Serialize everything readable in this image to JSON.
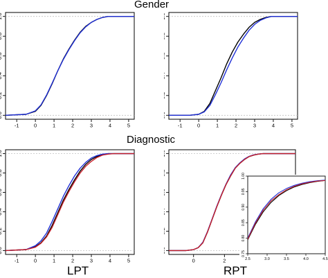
{
  "figure": {
    "section_titles": [
      "Gender",
      "Diagnostic"
    ],
    "bottom_labels": [
      "LPT",
      "RPT"
    ]
  },
  "colors": {
    "black": "#000000",
    "blue": "#1f2fd6",
    "red": "#c8202a",
    "frame": "#000000",
    "ref_line": "#bfbfbf"
  },
  "chart_data": [
    {
      "type": "line",
      "title": "",
      "xlabel": "",
      "ylabel": "",
      "xlim": [
        -1.6,
        5.3
      ],
      "ylim": [
        -0.04,
        1.04
      ],
      "x_ticks": [
        -1,
        0,
        1,
        2,
        3,
        4,
        5
      ],
      "y_ticks": [
        0.0,
        0.2,
        0.4,
        0.6,
        0.8,
        1.0
      ],
      "x_tick_labels": [
        "-1",
        "0",
        "1",
        "2",
        "3",
        "4",
        "5"
      ],
      "y_tick_labels": [
        "0.0",
        "0.2",
        "0.4",
        "0.6",
        "0.8",
        "1.0"
      ],
      "reference_lines_y": [
        0,
        1
      ],
      "grid": false,
      "series": [
        {
          "color": "black",
          "x": [
            -1.6,
            -0.5,
            0.0,
            0.3,
            0.6,
            0.9,
            1.2,
            1.5,
            1.8,
            2.1,
            2.4,
            2.7,
            3.0,
            3.3,
            3.6,
            3.9,
            4.2,
            4.5,
            5.3
          ],
          "y": [
            0.0,
            0.01,
            0.04,
            0.1,
            0.2,
            0.32,
            0.45,
            0.57,
            0.67,
            0.76,
            0.84,
            0.9,
            0.94,
            0.97,
            0.99,
            1.0,
            1.0,
            1.0,
            1.0
          ]
        },
        {
          "color": "blue",
          "x": [
            -1.6,
            -0.5,
            0.0,
            0.3,
            0.6,
            0.9,
            1.2,
            1.5,
            1.8,
            2.1,
            2.4,
            2.7,
            3.0,
            3.3,
            3.6,
            3.9,
            4.2,
            4.5,
            5.3
          ],
          "y": [
            0.0,
            0.01,
            0.045,
            0.105,
            0.205,
            0.325,
            0.45,
            0.565,
            0.665,
            0.755,
            0.835,
            0.895,
            0.94,
            0.97,
            0.99,
            1.0,
            1.0,
            1.0,
            1.0
          ]
        }
      ]
    },
    {
      "type": "line",
      "title": "",
      "xlabel": "",
      "ylabel": "",
      "xlim": [
        -1.6,
        5.3
      ],
      "ylim": [
        -0.04,
        1.04
      ],
      "x_ticks": [
        -1,
        0,
        1,
        2,
        3,
        4,
        5
      ],
      "y_ticks": [
        0.0,
        0.2,
        0.4,
        0.6,
        0.8,
        1.0
      ],
      "x_tick_labels": [
        "-1",
        "0",
        "1",
        "2",
        "3",
        "4",
        "5"
      ],
      "y_tick_labels": [
        "0.0",
        "0.2",
        "0.4",
        "0.6",
        "0.8",
        "1.0"
      ],
      "reference_lines_y": [
        0,
        1
      ],
      "grid": false,
      "series": [
        {
          "color": "black",
          "x": [
            -1.6,
            -0.5,
            0.0,
            0.3,
            0.6,
            0.9,
            1.2,
            1.5,
            1.8,
            2.1,
            2.4,
            2.7,
            3.0,
            3.3,
            3.6,
            3.9,
            4.2,
            4.5,
            5.3
          ],
          "y": [
            0.0,
            0.0,
            0.01,
            0.04,
            0.12,
            0.25,
            0.38,
            0.52,
            0.64,
            0.74,
            0.82,
            0.89,
            0.94,
            0.97,
            0.99,
            1.0,
            1.0,
            1.0,
            1.0
          ]
        },
        {
          "color": "blue",
          "x": [
            -1.6,
            -0.5,
            0.0,
            0.3,
            0.6,
            0.9,
            1.2,
            1.5,
            1.8,
            2.1,
            2.4,
            2.7,
            3.0,
            3.3,
            3.6,
            3.9,
            4.2,
            4.5,
            5.3
          ],
          "y": [
            0.0,
            0.0,
            0.01,
            0.035,
            0.1,
            0.21,
            0.33,
            0.46,
            0.58,
            0.69,
            0.78,
            0.86,
            0.92,
            0.96,
            0.985,
            1.0,
            1.0,
            1.0,
            1.0
          ]
        }
      ]
    },
    {
      "type": "line",
      "title": "",
      "xlabel": "",
      "ylabel": "",
      "xlim": [
        -1.6,
        5.3
      ],
      "ylim": [
        -0.04,
        1.04
      ],
      "x_ticks": [
        -1,
        0,
        1,
        2,
        3,
        4,
        5
      ],
      "y_ticks": [
        0.0,
        0.2,
        0.4,
        0.6,
        0.8,
        1.0
      ],
      "x_tick_labels": [
        "-1",
        "0",
        "1",
        "2",
        "3",
        "4",
        "5"
      ],
      "y_tick_labels": [
        "0.0",
        "0.2",
        "0.4",
        "0.6",
        "0.8",
        "1.0"
      ],
      "reference_lines_y": [
        0,
        1
      ],
      "grid": false,
      "series": [
        {
          "color": "black",
          "x": [
            -1.6,
            -0.5,
            0.0,
            0.3,
            0.6,
            0.9,
            1.2,
            1.5,
            1.8,
            2.1,
            2.4,
            2.7,
            3.0,
            3.3,
            3.6,
            3.9,
            4.2,
            4.5,
            5.3
          ],
          "y": [
            0.0,
            0.01,
            0.04,
            0.08,
            0.15,
            0.26,
            0.39,
            0.52,
            0.63,
            0.73,
            0.82,
            0.89,
            0.94,
            0.97,
            0.99,
            1.0,
            1.0,
            1.0,
            1.0
          ]
        },
        {
          "color": "blue",
          "x": [
            -1.6,
            -0.5,
            0.0,
            0.3,
            0.6,
            0.9,
            1.2,
            1.5,
            1.8,
            2.1,
            2.4,
            2.7,
            3.0,
            3.3,
            3.6,
            3.9,
            4.2,
            4.5,
            5.3
          ],
          "y": [
            0.0,
            0.01,
            0.05,
            0.1,
            0.18,
            0.3,
            0.43,
            0.56,
            0.67,
            0.77,
            0.85,
            0.91,
            0.955,
            0.98,
            0.995,
            1.0,
            1.0,
            1.0,
            1.0
          ]
        },
        {
          "color": "red",
          "x": [
            -1.6,
            -0.5,
            0.0,
            0.3,
            0.6,
            0.9,
            1.2,
            1.5,
            1.8,
            2.1,
            2.4,
            2.7,
            3.0,
            3.3,
            3.6,
            3.9,
            4.2,
            4.5,
            5.3
          ],
          "y": [
            0.0,
            0.01,
            0.035,
            0.075,
            0.14,
            0.24,
            0.37,
            0.5,
            0.61,
            0.71,
            0.8,
            0.87,
            0.92,
            0.96,
            0.985,
            0.995,
            1.0,
            1.0,
            1.0
          ]
        }
      ]
    },
    {
      "type": "line",
      "title": "",
      "xlabel": "",
      "ylabel": "",
      "xlim": [
        -1.6,
        6.6
      ],
      "ylim": [
        -0.04,
        1.04
      ],
      "x_ticks": [
        0,
        2,
        4,
        6
      ],
      "y_ticks": [
        0.0,
        0.2,
        0.4,
        0.6,
        0.8,
        1.0
      ],
      "x_tick_labels": [
        "0",
        "2",
        "4",
        "6"
      ],
      "y_tick_labels": [
        "0.0",
        "0.2",
        "0.4",
        "0.6",
        "0.8",
        "1.0"
      ],
      "reference_lines_y": [
        0,
        1
      ],
      "grid": false,
      "series": [
        {
          "color": "black",
          "x": [
            -1.6,
            -0.5,
            0.0,
            0.3,
            0.6,
            0.9,
            1.2,
            1.5,
            1.8,
            2.1,
            2.4,
            2.7,
            3.0,
            3.3,
            3.6,
            3.9,
            4.2,
            4.5,
            5.0,
            6.6
          ],
          "y": [
            0.0,
            0.0,
            0.01,
            0.03,
            0.08,
            0.19,
            0.32,
            0.45,
            0.57,
            0.68,
            0.77,
            0.85,
            0.9,
            0.94,
            0.97,
            0.985,
            0.995,
            1.0,
            1.0,
            1.0
          ]
        },
        {
          "color": "blue",
          "x": [
            -1.6,
            -0.5,
            0.0,
            0.3,
            0.6,
            0.9,
            1.2,
            1.5,
            1.8,
            2.1,
            2.4,
            2.7,
            3.0,
            3.3,
            3.6,
            3.9,
            4.2,
            4.5,
            5.0,
            6.6
          ],
          "y": [
            0.0,
            0.0,
            0.01,
            0.03,
            0.085,
            0.195,
            0.325,
            0.455,
            0.575,
            0.685,
            0.78,
            0.855,
            0.905,
            0.945,
            0.972,
            0.988,
            0.996,
            1.0,
            1.0,
            1.0
          ]
        },
        {
          "color": "red",
          "x": [
            -1.6,
            -0.5,
            0.0,
            0.3,
            0.6,
            0.9,
            1.2,
            1.5,
            1.8,
            2.1,
            2.4,
            2.7,
            3.0,
            3.3,
            3.6,
            3.9,
            4.2,
            4.5,
            5.0,
            6.6
          ],
          "y": [
            0.0,
            0.0,
            0.01,
            0.03,
            0.08,
            0.19,
            0.32,
            0.45,
            0.57,
            0.68,
            0.77,
            0.85,
            0.9,
            0.94,
            0.97,
            0.985,
            0.995,
            1.0,
            1.0,
            1.0
          ]
        }
      ],
      "inset": {
        "xlim": [
          2.5,
          4.5
        ],
        "ylim": [
          0.75,
          1.0
        ],
        "x_ticks": [
          2.5,
          3.0,
          3.5,
          4.0,
          4.5
        ],
        "y_ticks": [
          0.75,
          0.8,
          0.85,
          0.9,
          0.95,
          1.0
        ],
        "x_tick_labels": [
          "2.5",
          "3.0",
          "3.5",
          "4.0",
          "4.5"
        ],
        "y_tick_labels": [
          "0.75",
          "0.80",
          "0.85",
          "0.90",
          "0.95",
          "1.00"
        ],
        "series": [
          {
            "color": "black",
            "x": [
              2.5,
              2.7,
              2.9,
              3.1,
              3.3,
              3.5,
              3.7,
              3.9,
              4.1,
              4.3,
              4.5
            ],
            "y": [
              0.795,
              0.845,
              0.885,
              0.915,
              0.937,
              0.953,
              0.965,
              0.973,
              0.979,
              0.983,
              0.986
            ]
          },
          {
            "color": "blue",
            "x": [
              2.5,
              2.7,
              2.9,
              3.1,
              3.3,
              3.5,
              3.7,
              3.9,
              4.1,
              4.3,
              4.5
            ],
            "y": [
              0.8,
              0.853,
              0.895,
              0.925,
              0.946,
              0.96,
              0.97,
              0.977,
              0.982,
              0.985,
              0.987
            ]
          },
          {
            "color": "red",
            "x": [
              2.5,
              2.7,
              2.9,
              3.1,
              3.3,
              3.5,
              3.7,
              3.9,
              4.1,
              4.3,
              4.5
            ],
            "y": [
              0.797,
              0.849,
              0.89,
              0.92,
              0.94,
              0.956,
              0.967,
              0.975,
              0.98,
              0.984,
              0.986
            ]
          }
        ]
      }
    }
  ]
}
